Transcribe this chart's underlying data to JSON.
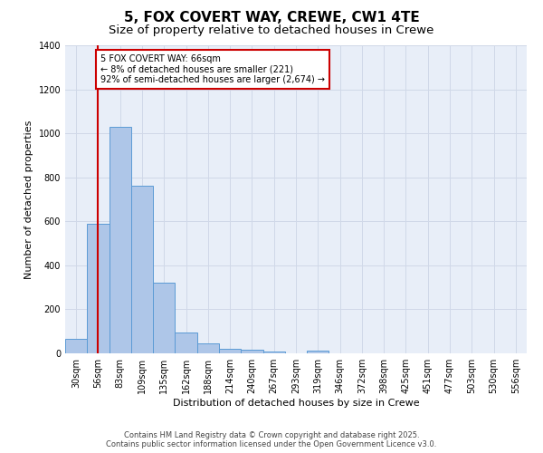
{
  "title": "5, FOX COVERT WAY, CREWE, CW1 4TE",
  "subtitle": "Size of property relative to detached houses in Crewe",
  "xlabel": "Distribution of detached houses by size in Crewe",
  "ylabel": "Number of detached properties",
  "bins": [
    "30sqm",
    "56sqm",
    "83sqm",
    "109sqm",
    "135sqm",
    "162sqm",
    "188sqm",
    "214sqm",
    "240sqm",
    "267sqm",
    "293sqm",
    "319sqm",
    "346sqm",
    "372sqm",
    "398sqm",
    "425sqm",
    "451sqm",
    "477sqm",
    "503sqm",
    "530sqm",
    "556sqm"
  ],
  "bar_heights": [
    65,
    590,
    1030,
    760,
    320,
    95,
    45,
    22,
    15,
    8,
    0,
    12,
    0,
    0,
    0,
    0,
    0,
    0,
    0,
    0,
    0
  ],
  "bar_color": "#aec6e8",
  "bar_edge_color": "#5b9bd5",
  "vline_x_idx": 1,
  "vline_color": "#cc0000",
  "annotation_text": "5 FOX COVERT WAY: 66sqm\n← 8% of detached houses are smaller (221)\n92% of semi-detached houses are larger (2,674) →",
  "annotation_box_color": "#ffffff",
  "annotation_box_edge": "#cc0000",
  "ylim": [
    0,
    1400
  ],
  "yticks": [
    0,
    200,
    400,
    600,
    800,
    1000,
    1200,
    1400
  ],
  "grid_color": "#d0d8e8",
  "bg_color": "#e8eef8",
  "footer1": "Contains HM Land Registry data © Crown copyright and database right 2025.",
  "footer2": "Contains public sector information licensed under the Open Government Licence v3.0.",
  "title_fontsize": 11,
  "subtitle_fontsize": 9.5,
  "axis_label_fontsize": 8,
  "tick_fontsize": 7,
  "annotation_fontsize": 7,
  "footer_fontsize": 6
}
